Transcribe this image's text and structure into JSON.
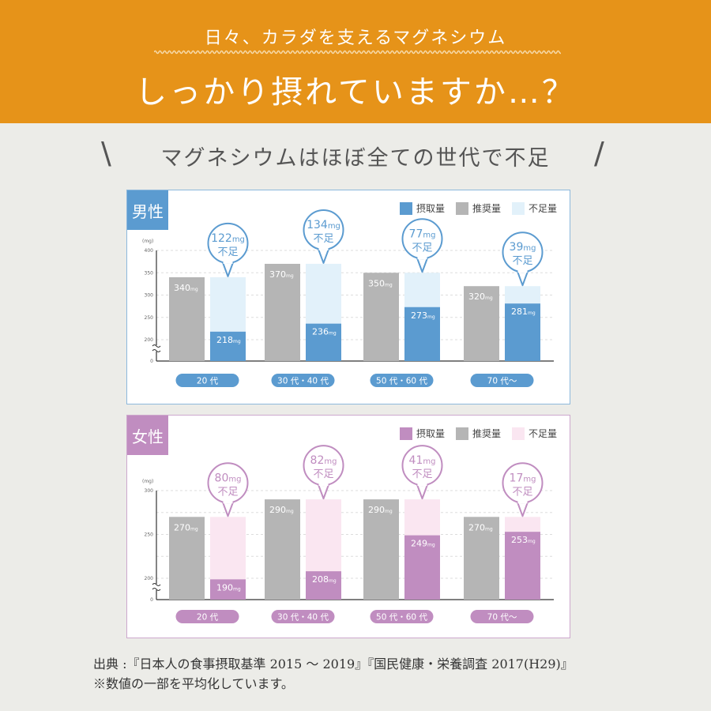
{
  "header": {
    "subtitle": "日々、カラダを支えるマグネシウム",
    "title": "しっかり摂れていますか…？",
    "bg_color": "#E69319"
  },
  "section": {
    "heading": "マグネシウムはほぼ全ての世代で不足",
    "slash_left": "\\",
    "slash_right": "/"
  },
  "legend": {
    "intake": "摂取量",
    "recommended": "推奨量",
    "shortage": "不足量"
  },
  "chart_data": [
    {
      "type": "bar",
      "title": "男性",
      "ylabel": "(mg)",
      "unit": "mg",
      "shortage_suffix": "不足",
      "categories": [
        "20 代",
        "30 代・40 代",
        "50 代・60 代",
        "70 代〜"
      ],
      "series": [
        {
          "name": "推奨量",
          "values": [
            340,
            370,
            350,
            320
          ]
        },
        {
          "name": "摂取量",
          "values": [
            218,
            236,
            273,
            281
          ]
        },
        {
          "name": "不足量",
          "values": [
            122,
            134,
            77,
            39
          ]
        }
      ],
      "ylim": [
        0,
        400
      ],
      "axis_break_after": 0,
      "axis_break_resume": 200,
      "yticks": [
        0,
        200,
        250,
        300,
        350,
        400
      ],
      "grid": [
        200,
        250,
        300,
        350,
        400
      ],
      "colors": {
        "accent": "#5B9BD0",
        "recommended": "#B5B5B5",
        "shortage": "#E2F1FA",
        "border": "#8DB8DC"
      }
    },
    {
      "type": "bar",
      "title": "女性",
      "ylabel": "(mg)",
      "unit": "mg",
      "shortage_suffix": "不足",
      "categories": [
        "20 代",
        "30 代・40 代",
        "50 代・60 代",
        "70 代〜"
      ],
      "series": [
        {
          "name": "推奨量",
          "values": [
            270,
            290,
            290,
            270
          ]
        },
        {
          "name": "摂取量",
          "values": [
            190,
            208,
            249,
            253
          ]
        },
        {
          "name": "不足量",
          "values": [
            80,
            82,
            41,
            17
          ]
        }
      ],
      "ylim": [
        0,
        300
      ],
      "axis_break_after": 0,
      "axis_break_resume": 200,
      "yticks": [
        0,
        200,
        250,
        300
      ],
      "grid": [
        200,
        225,
        250,
        275,
        300
      ],
      "colors": {
        "accent": "#C08DC0",
        "recommended": "#B5B5B5",
        "shortage": "#FAE6F1",
        "border": "#CDA8CD"
      }
    }
  ],
  "footer": {
    "source": "出典 :『日本人の食事摂取基準 2015 〜 2019』『国民健康・栄養調査 2017(H29)』",
    "note": "※数値の一部を平均化しています。"
  }
}
